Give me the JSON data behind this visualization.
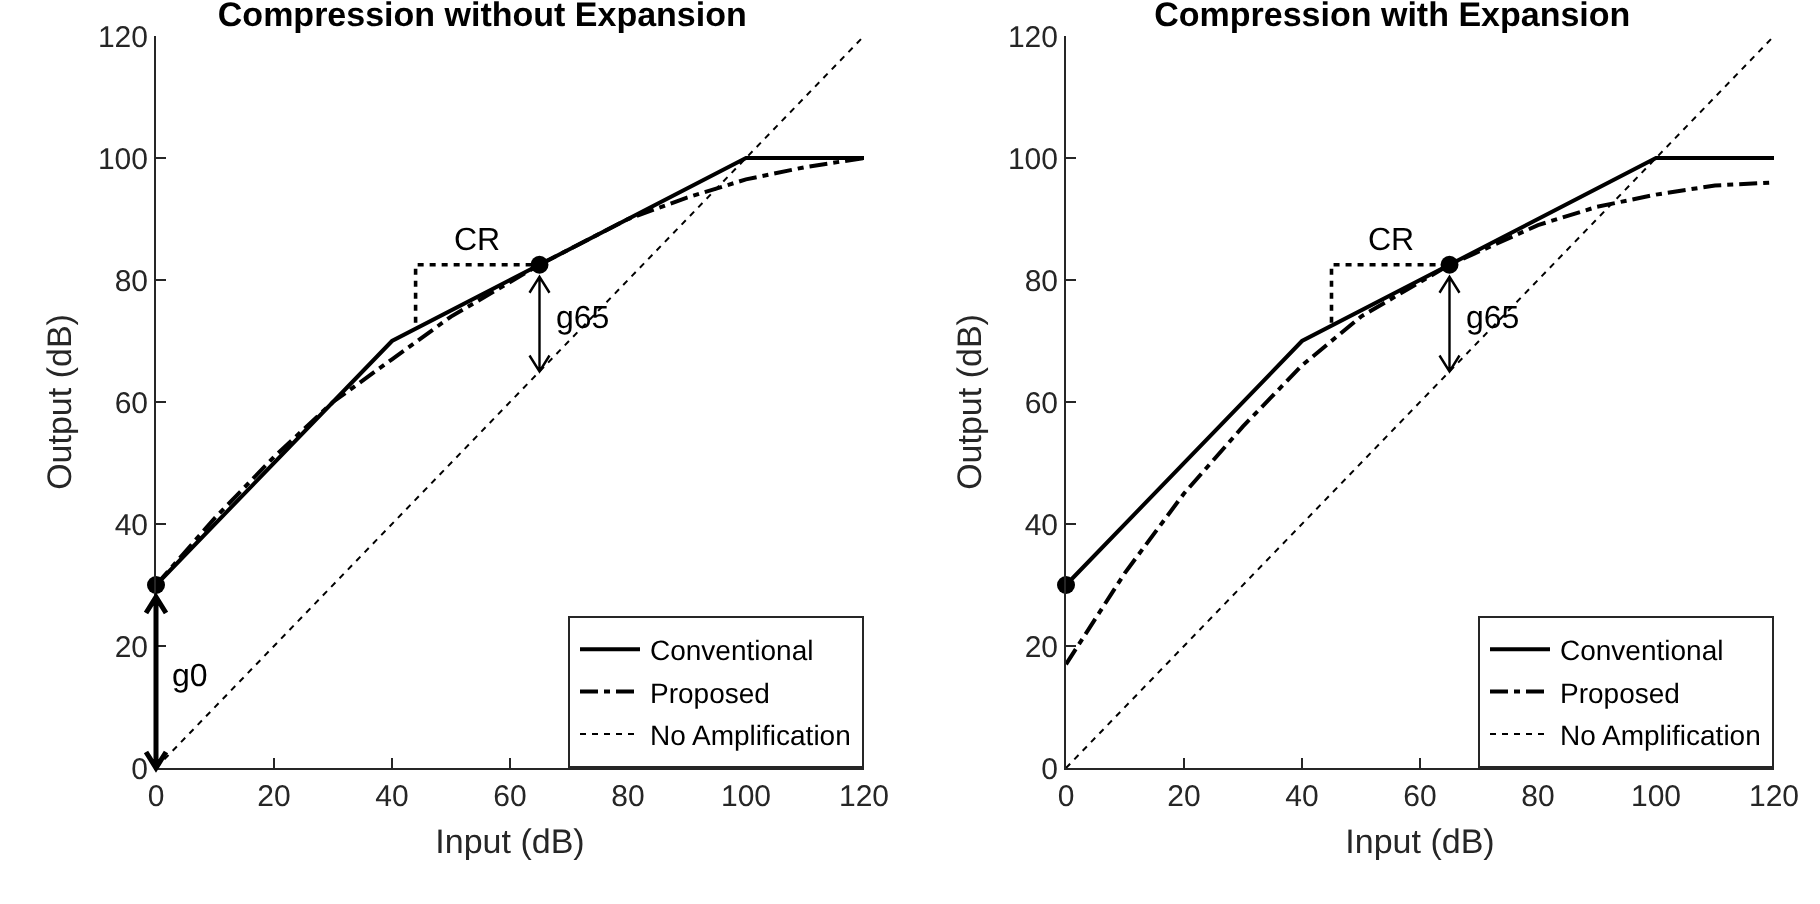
{
  "chart_data": [
    {
      "type": "line",
      "title": "Compression without Expansion",
      "xlabel": "Input (dB)",
      "ylabel": "Output (dB)",
      "xlim": [
        0,
        120
      ],
      "xticks": [
        0,
        20,
        40,
        60,
        80,
        100,
        120
      ],
      "ylim": [
        0,
        120
      ],
      "yticks": [
        0,
        20,
        40,
        60,
        80,
        100,
        120
      ],
      "grid": false,
      "legend": "bottom right",
      "series": [
        {
          "name": "Conventional",
          "color": "#000000",
          "line_style": "solid",
          "x": [
            0,
            40,
            65,
            100,
            120
          ],
          "values": [
            30,
            70,
            82.5,
            100,
            100
          ]
        },
        {
          "name": "Proposed",
          "color": "#000000",
          "line_style": "dashdot",
          "x": [
            0,
            10,
            20,
            30,
            40,
            50,
            65,
            80,
            90,
            100,
            110,
            120
          ],
          "values": [
            30,
            41,
            51,
            60,
            67,
            74,
            82.5,
            90,
            93.5,
            96.5,
            98.5,
            100
          ]
        },
        {
          "name": "No Amplification",
          "color": "#000000",
          "line_style": "dotted",
          "x": [
            0,
            120
          ],
          "values": [
            0,
            120
          ]
        },
        {
          "type": "line",
          "color": "#000000",
          "line_style": "dotted",
          "x": [
            44,
            44,
            65
          ],
          "values": [
            73,
            82.5,
            82.5
          ]
        },
        {
          "type": "scatter",
          "marker": "circle",
          "color": "#000000",
          "x": [
            0,
            65
          ],
          "values": [
            30,
            82.5
          ]
        }
      ],
      "annotations": [
        {
          "text": "CR",
          "x": 54.5,
          "y": 82.5
        },
        {
          "text": "g65",
          "x": 65,
          "y": 65
        },
        {
          "text": "g0",
          "x": 0,
          "y": 0
        }
      ]
    },
    {
      "type": "line",
      "title": "Compression with Expansion",
      "xlabel": "Input (dB)",
      "ylabel": "Output (dB)",
      "xlim": [
        0,
        120
      ],
      "xticks": [
        0,
        20,
        40,
        60,
        80,
        100,
        120
      ],
      "ylim": [
        0,
        120
      ],
      "yticks": [
        0,
        20,
        40,
        60,
        80,
        100,
        120
      ],
      "grid": false,
      "legend": "bottom right",
      "series": [
        {
          "name": "Conventional",
          "color": "#000000",
          "line_style": "solid",
          "x": [
            0,
            40,
            65,
            100,
            120
          ],
          "values": [
            30,
            70,
            82.5,
            100,
            100
          ]
        },
        {
          "name": "Proposed",
          "color": "#000000",
          "line_style": "dashdot",
          "x": [
            0,
            10,
            20,
            30,
            40,
            50,
            65,
            80,
            90,
            100,
            110,
            120
          ],
          "values": [
            17,
            32,
            45,
            56,
            66,
            74,
            82.5,
            89,
            92,
            94,
            95.5,
            96
          ]
        },
        {
          "name": "No Amplification",
          "color": "#000000",
          "line_style": "dotted",
          "x": [
            0,
            120
          ],
          "values": [
            0,
            120
          ]
        },
        {
          "type": "line",
          "color": "#000000",
          "line_style": "dotted",
          "x": [
            45,
            45,
            65
          ],
          "values": [
            73,
            82.5,
            82.5
          ]
        },
        {
          "type": "scatter",
          "marker": "circle",
          "color": "#000000",
          "x": [
            0,
            65
          ],
          "values": [
            30,
            82.5
          ]
        }
      ],
      "annotations": [
        {
          "text": "CR",
          "x": 55,
          "y": 82.5
        },
        {
          "text": "g65",
          "x": 65,
          "y": 65
        }
      ]
    }
  ]
}
